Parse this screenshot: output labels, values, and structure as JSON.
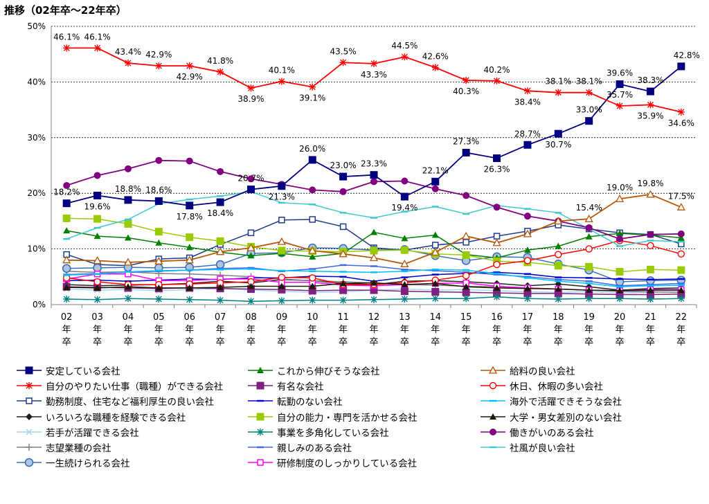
{
  "chart_data": {
    "type": "line",
    "title": "推移（02年卒～22年卒）",
    "ylim": [
      0,
      50
    ],
    "yticks": [
      "0%",
      "10%",
      "20%",
      "30%",
      "40%",
      "50%"
    ],
    "grid": true,
    "legend_position": "bottom",
    "categories": [
      [
        "02",
        "年",
        "卒"
      ],
      [
        "03",
        "年",
        "卒"
      ],
      [
        "04",
        "年",
        "卒"
      ],
      [
        "05",
        "年",
        "卒"
      ],
      [
        "06",
        "年",
        "卒"
      ],
      [
        "07",
        "年",
        "卒"
      ],
      [
        "08",
        "年",
        "卒"
      ],
      [
        "09",
        "年",
        "卒"
      ],
      [
        "10",
        "年",
        "卒"
      ],
      [
        "11",
        "年",
        "卒"
      ],
      [
        "12",
        "年",
        "卒"
      ],
      [
        "13",
        "年",
        "卒"
      ],
      [
        "14",
        "年",
        "卒"
      ],
      [
        "15",
        "年",
        "卒"
      ],
      [
        "16",
        "年",
        "卒"
      ],
      [
        "17",
        "年",
        "卒"
      ],
      [
        "18",
        "年",
        "卒"
      ],
      [
        "19",
        "年",
        "卒"
      ],
      [
        "20",
        "年",
        "卒"
      ],
      [
        "21",
        "年",
        "卒"
      ],
      [
        "22",
        "年",
        "卒"
      ]
    ],
    "series": [
      {
        "name": "安定している会社",
        "color": "#000080",
        "marker": "square-filled",
        "values": [
          18.2,
          19.6,
          18.8,
          18.6,
          17.8,
          18.4,
          20.7,
          21.3,
          26.0,
          23.0,
          23.3,
          19.4,
          22.1,
          27.3,
          26.3,
          28.7,
          30.7,
          33.0,
          39.6,
          38.3,
          42.8
        ],
        "labels": [
          "18.2%",
          "19.6%",
          "18.8%",
          "18.6%",
          "17.8%",
          "18.4%",
          "20.7%",
          "21.3%",
          "26.0%",
          "23.0%",
          "23.3%",
          "19.4%",
          "22.1%",
          "27.3%",
          "26.3%",
          "28.7%",
          "30.7%",
          "33.0%",
          "39.6%",
          "38.3%",
          "42.8%"
        ]
      },
      {
        "name": "自分のやりたい仕事（職種）ができる会社",
        "color": "#ff0000",
        "marker": "star",
        "values": [
          46.1,
          46.1,
          43.4,
          42.9,
          42.9,
          41.8,
          38.9,
          40.1,
          39.1,
          43.5,
          43.3,
          44.5,
          42.6,
          40.3,
          40.2,
          38.4,
          38.1,
          38.1,
          35.7,
          35.9,
          34.6
        ],
        "labels": [
          "46.1%",
          "46.1%",
          "43.4%",
          "42.9%",
          "42.9%",
          "41.8%",
          "38.9%",
          "40.1%",
          "39.1%",
          "43.5%",
          "43.3%",
          "44.5%",
          "42.6%",
          "40.3%",
          "40.2%",
          "38.4%",
          "38.1%",
          "38.1%",
          "35.7%",
          "35.9%",
          "34.6%"
        ]
      },
      {
        "name": "勤務制度、住宅など福利厚生の良い会社",
        "color": "#1f3a8a",
        "marker": "square-open",
        "values": [
          9.0,
          7.2,
          7.0,
          8.2,
          8.4,
          10.8,
          12.9,
          15.2,
          15.3,
          14.0,
          10.2,
          9.8,
          10.7,
          11.2,
          12.3,
          13.2,
          14.3,
          13.6,
          12.9,
          12.6,
          10.9
        ]
      },
      {
        "name": "いろいろな職種を経験できる会社",
        "color": "#202020",
        "marker": "diamond-filled",
        "values": [
          3.6,
          3.4,
          3.5,
          3.6,
          3.8,
          4.2,
          3.9,
          4.5,
          4.3,
          3.8,
          3.6,
          4.2,
          4.3,
          4.1,
          3.8,
          3.4,
          3.7,
          3.2,
          2.6,
          2.9,
          3.0
        ]
      },
      {
        "name": "若手が活躍できる会社",
        "color": "#a8d4f5",
        "marker": "x",
        "values": [
          2.8,
          2.6,
          2.7,
          2.5,
          2.7,
          2.9,
          2.6,
          2.4,
          2.2,
          2.3,
          2.6,
          2.8,
          2.6,
          2.7,
          2.5,
          2.3,
          2.2,
          2.3,
          2.1,
          2.2,
          2.3
        ]
      },
      {
        "name": "志望業種の会社",
        "color": "#808080",
        "marker": "plus",
        "values": [
          6.0,
          5.8,
          5.9,
          5.6,
          5.5,
          5.3,
          5.0,
          4.6,
          4.3,
          4.1,
          3.9,
          3.6,
          3.5,
          3.3,
          3.2,
          3.0,
          2.8,
          2.6,
          2.4,
          2.3,
          2.2
        ]
      },
      {
        "name": "一生続けられる会社",
        "color": "#3a6fb5",
        "marker": "circle-hatched",
        "values": [
          6.5,
          6.6,
          6.7,
          6.6,
          6.7,
          7.2,
          9.2,
          9.3,
          10.2,
          10.1,
          9.8,
          9.9,
          8.8,
          7.9,
          8.6,
          8.5,
          7.3,
          6.2,
          4.1,
          4.3,
          4.4
        ]
      },
      {
        "name": "これから伸びそうな会社",
        "color": "#008000",
        "marker": "triangle-filled",
        "values": [
          13.3,
          12.3,
          12.0,
          11.1,
          10.3,
          9.4,
          8.8,
          9.2,
          8.6,
          9.2,
          13.0,
          11.9,
          12.5,
          9.0,
          8.4,
          9.8,
          10.5,
          12.2,
          12.8,
          12.5,
          12.0
        ]
      },
      {
        "name": "有名な会社",
        "color": "#7f1f7f",
        "marker": "square-filled",
        "values": [
          3.2,
          3.1,
          3.0,
          2.9,
          3.0,
          2.9,
          2.8,
          2.7,
          2.5,
          2.6,
          2.6,
          2.4,
          2.3,
          2.2,
          2.1,
          2.0,
          2.0,
          1.9,
          1.8,
          1.8,
          1.9
        ]
      },
      {
        "name": "転勤のない会社",
        "color": "#0000cd",
        "marker": "dash",
        "values": [
          4.3,
          4.4,
          4.2,
          4.4,
          4.6,
          4.5,
          4.8,
          4.8,
          5.1,
          5.0,
          4.2,
          4.9,
          5.4,
          5.6,
          5.8,
          5.5,
          4.9,
          4.8,
          4.6,
          4.5,
          4.6
        ]
      },
      {
        "name": "自分の能力・専門を活かせる会社",
        "color": "#99cc00",
        "marker": "square-filled",
        "values": [
          15.5,
          15.4,
          14.5,
          13.1,
          12.1,
          11.4,
          10.4,
          9.7,
          9.6,
          9.5,
          9.7,
          9.8,
          9.1,
          8.9,
          7.8,
          7.6,
          7.0,
          6.8,
          5.9,
          6.3,
          6.2
        ]
      },
      {
        "name": "事業を多角化している会社",
        "color": "#008080",
        "marker": "star",
        "values": [
          1.0,
          0.9,
          1.1,
          1.0,
          0.9,
          0.8,
          0.6,
          0.7,
          0.8,
          0.8,
          0.9,
          1.0,
          1.1,
          1.1,
          1.4,
          1.1,
          1.0,
          1.1,
          1.1,
          1.0,
          1.1
        ]
      },
      {
        "name": "親しみのある会社",
        "color": "#4169e1",
        "marker": "dash",
        "values": [
          5.4,
          5.6,
          5.8,
          6.0,
          6.2,
          6.5,
          6.6,
          6.0,
          6.4,
          7.1,
          6.9,
          6.3,
          6.1,
          5.8,
          5.4,
          5.0,
          4.5,
          4.2,
          3.4,
          3.6,
          3.8
        ]
      },
      {
        "name": "研修制度のしっかりしている会社",
        "color": "#ff00ff",
        "marker": "square-open",
        "values": [
          4.6,
          5.5,
          5.5,
          4.3,
          4.3,
          4.6,
          4.6,
          4.0,
          4.0,
          3.5,
          3.4,
          3.6,
          3.8,
          3.9,
          3.3,
          3.0,
          2.8,
          2.6,
          2.5,
          2.7,
          2.7
        ]
      },
      {
        "name": "給料の良い会社",
        "color": "#b8560a",
        "marker": "triangle-open",
        "values": [
          8.0,
          7.9,
          7.6,
          7.8,
          8.0,
          9.5,
          10.2,
          11.3,
          9.7,
          9.1,
          8.4,
          7.3,
          9.4,
          12.3,
          11.1,
          12.7,
          15.0,
          15.4,
          19.0,
          19.8,
          17.5
        ],
        "labels": [
          null,
          null,
          null,
          null,
          null,
          null,
          null,
          null,
          null,
          null,
          null,
          null,
          null,
          null,
          null,
          null,
          null,
          "15.4%",
          "19.0%",
          "19.8%",
          "17.5%"
        ]
      },
      {
        "name": "休日、休暇の多い会社",
        "color": "#ff0000",
        "marker": "circle-open",
        "values": [
          4.8,
          4.1,
          3.6,
          3.6,
          3.7,
          3.9,
          4.1,
          4.9,
          4.8,
          3.6,
          3.6,
          3.9,
          4.4,
          5.2,
          7.2,
          7.9,
          9.0,
          10.0,
          11.5,
          10.6,
          9.1
        ]
      },
      {
        "name": "海外で活躍できそうな会社",
        "color": "#00bfff",
        "marker": "dash",
        "values": [
          5.3,
          5.5,
          5.9,
          6.1,
          6.2,
          6.3,
          6.4,
          6.1,
          6.0,
          5.9,
          5.8,
          6.0,
          6.3,
          6.2,
          5.6,
          4.8,
          4.2,
          3.8,
          3.2,
          3.4,
          3.5
        ]
      },
      {
        "name": "大学・男女差別のない会社",
        "color": "#1a1a00",
        "marker": "triangle-filled",
        "values": [
          3.1,
          3.0,
          3.2,
          3.0,
          3.0,
          3.1,
          3.3,
          3.3,
          3.3,
          3.8,
          3.9,
          3.6,
          3.8,
          3.2,
          3.0,
          2.9,
          2.8,
          2.6,
          2.5,
          2.6,
          2.6
        ]
      },
      {
        "name": "働きがいのある会社",
        "color": "#800080",
        "marker": "circle-filled",
        "values": [
          21.4,
          23.2,
          24.4,
          25.9,
          25.8,
          23.9,
          22.6,
          21.6,
          20.6,
          20.3,
          22.1,
          22.2,
          20.8,
          19.6,
          17.5,
          15.9,
          15.0,
          13.8,
          11.8,
          12.6,
          12.7
        ]
      },
      {
        "name": "社風が良い会社",
        "color": "#40c8d0",
        "marker": "dash",
        "values": [
          11.8,
          13.8,
          15.3,
          18.1,
          18.9,
          19.5,
          20.3,
          18.3,
          18.0,
          16.5,
          15.6,
          16.7,
          17.6,
          16.3,
          17.8,
          17.2,
          16.5,
          13.6,
          10.5,
          11.5,
          11.3
        ]
      }
    ]
  }
}
